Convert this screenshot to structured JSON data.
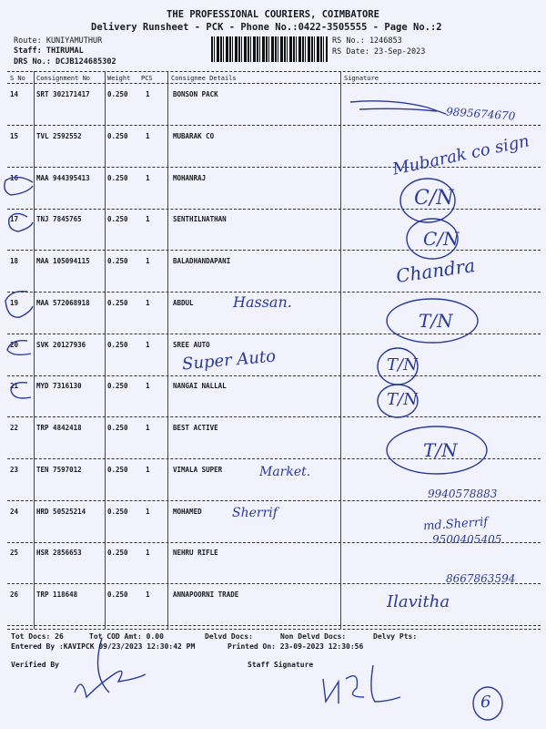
{
  "header": {
    "company": "THE PROFESSIONAL COURIERS, COIMBATORE",
    "subtitle": "Delivery Runsheet - PCK - Phone No.:0422-3505555 - Page No.:2",
    "route": "Route: KUNIYAMUTHUR",
    "staff": "Staff: THIRUMAL",
    "drs_no": "DRS No.: DCJB124685302",
    "rs_no": "RS No.: 1246853",
    "rs_date": "RS Date: 23-Sep-2023"
  },
  "table": {
    "columns": [
      "S No",
      "Consignment No",
      "Weight",
      "PCS",
      "Consignee Details",
      "Signature"
    ],
    "rows": [
      {
        "sno": "14",
        "consignment": "SRT 302171417",
        "weight": "0.250",
        "pcs": "1",
        "consignee": "BONSON PACK"
      },
      {
        "sno": "15",
        "consignment": "TVL 2592552",
        "weight": "0.250",
        "pcs": "1",
        "consignee": "MUBARAK CO"
      },
      {
        "sno": "16",
        "consignment": "MAA 944395413",
        "weight": "0.250",
        "pcs": "1",
        "consignee": "MOHANRAJ"
      },
      {
        "sno": "17",
        "consignment": "TNJ 7845765",
        "weight": "0.250",
        "pcs": "1",
        "consignee": "SENTHILNATHAN"
      },
      {
        "sno": "18",
        "consignment": "MAA 105094115",
        "weight": "0.250",
        "pcs": "1",
        "consignee": "BALADHANDAPANI"
      },
      {
        "sno": "19",
        "consignment": "MAA 572068918",
        "weight": "0.250",
        "pcs": "1",
        "consignee": "ABDUL"
      },
      {
        "sno": "20",
        "consignment": "SVK 20127936",
        "weight": "0.250",
        "pcs": "1",
        "consignee": "SREE AUTO"
      },
      {
        "sno": "21",
        "consignment": "MYD 7316130",
        "weight": "0.250",
        "pcs": "1",
        "consignee": "NANGAI NALLAL"
      },
      {
        "sno": "22",
        "consignment": "TRP 4842418",
        "weight": "0.250",
        "pcs": "1",
        "consignee": "BEST ACTIVE"
      },
      {
        "sno": "23",
        "consignment": "TEN 7597012",
        "weight": "0.250",
        "pcs": "1",
        "consignee": "VIMALA SUPER"
      },
      {
        "sno": "24",
        "consignment": "HRD 50525214",
        "weight": "0.250",
        "pcs": "1",
        "consignee": "MOHAMED"
      },
      {
        "sno": "25",
        "consignment": "HSR 2856653",
        "weight": "0.250",
        "pcs": "1",
        "consignee": "NEHRU RIFLE"
      },
      {
        "sno": "26",
        "consignment": "TRP 118648",
        "weight": "0.250",
        "pcs": "1",
        "consignee": "ANNAPOORNI TRADE"
      }
    ]
  },
  "handwriting": {
    "r14": "9895674670",
    "r15": "Mubarak co sign",
    "r16": "C/N",
    "r17": "C/N",
    "r18": "Chandra",
    "r19_name": "Hassan.",
    "r19": "T/N",
    "r20_name": "Super Auto",
    "r20": "T/N",
    "r21": "T/N",
    "r22": "T/N",
    "r23_name": "Market.",
    "r23": "9940578883",
    "r24_name": "Sherrif",
    "r24a": "md.Sherrif",
    "r24b": "9500405405",
    "r25": "8667863594",
    "r26": "Ilavitha",
    "page_mark": "6"
  },
  "footer": {
    "tot_docs": "Tot Docs:  26",
    "tot_cod": "Tot COD Amt:    0.00",
    "delvd_docs": "Delvd Docs:",
    "non_delvd_docs": "Non Delvd Docs:",
    "delvy_pts": "Delvy Pts:",
    "entered_by": "Entered By :KAVIPCK 09/23/2023 12:30:42 PM",
    "printed_on": "Printed On: 23-09-2023 12:30:56",
    "verified_by": "Verified By",
    "staff_signature": "Staff Signature"
  },
  "colors": {
    "paper": "#f1f2fb",
    "ink": "#2a3a9a",
    "print": "#1a1a22"
  }
}
